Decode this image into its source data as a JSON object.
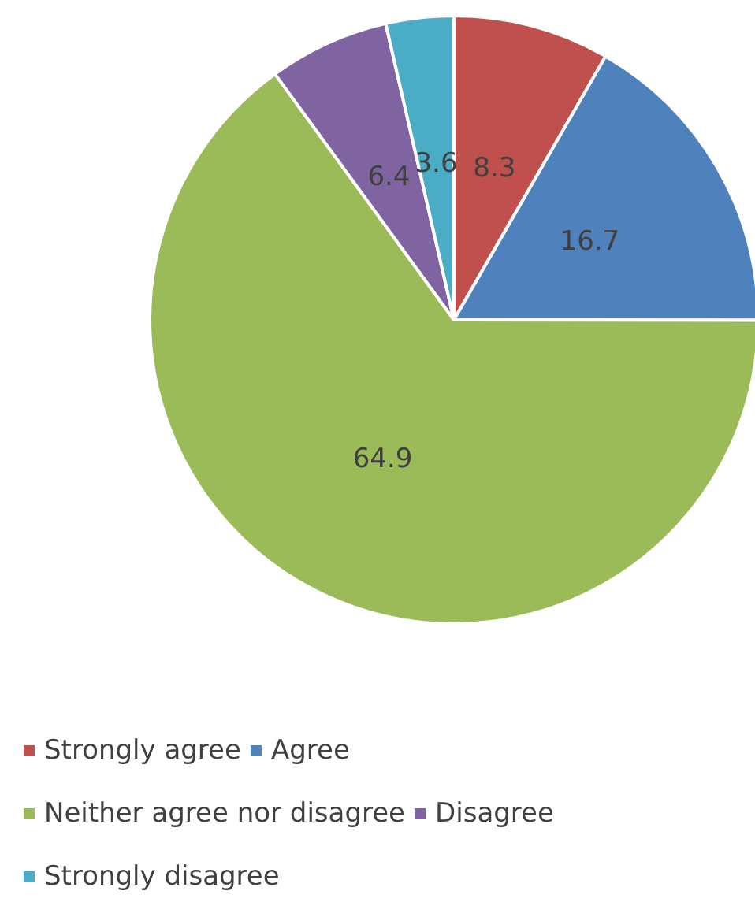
{
  "chart_data": {
    "type": "pie",
    "categories": [
      "Strongly agree",
      "Agree",
      "Neither agree nor disagree",
      "Disagree",
      "Strongly disagree"
    ],
    "values": [
      8.3,
      16.7,
      64.9,
      6.4,
      3.6
    ],
    "colors": [
      "#c0504d",
      "#4f81bd",
      "#9bbb59",
      "#8064a2",
      "#4bacc6"
    ],
    "data_labels": true,
    "legend": "bottom"
  }
}
